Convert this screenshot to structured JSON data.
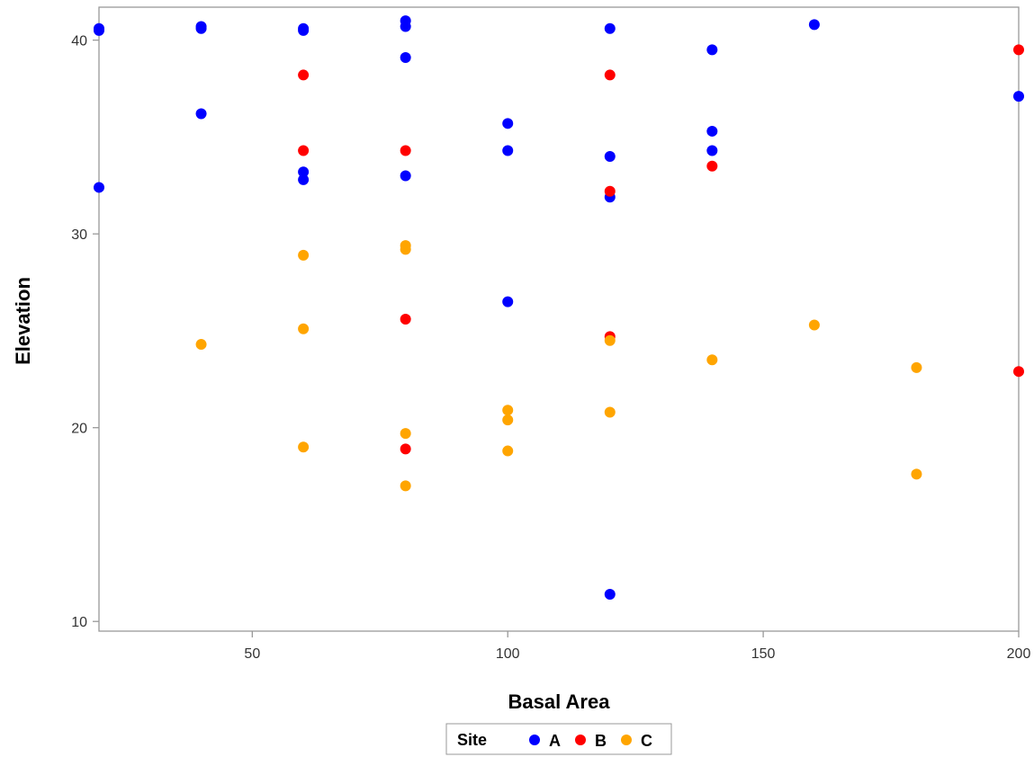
{
  "chart_data": {
    "type": "scatter",
    "title": "",
    "xlabel": "Basal Area",
    "ylabel": "Elevation",
    "xlim": [
      20,
      200
    ],
    "ylim": [
      9.5,
      41.7
    ],
    "x_ticks": [
      50,
      100,
      150,
      200
    ],
    "y_ticks": [
      10,
      20,
      30,
      40
    ],
    "grid": false,
    "legend": {
      "title": "Site",
      "placement": "bottom-center"
    },
    "series": [
      {
        "name": "A",
        "color": "#0000ff",
        "points": [
          [
            20,
            40.6
          ],
          [
            20,
            40.5
          ],
          [
            20,
            32.4
          ],
          [
            40,
            40.7
          ],
          [
            40,
            40.6
          ],
          [
            40,
            36.2
          ],
          [
            60,
            40.6
          ],
          [
            60,
            40.5
          ],
          [
            60,
            33.2
          ],
          [
            60,
            32.8
          ],
          [
            80,
            41.0
          ],
          [
            80,
            40.7
          ],
          [
            80,
            39.1
          ],
          [
            80,
            33.0
          ],
          [
            100,
            35.7
          ],
          [
            100,
            34.3
          ],
          [
            100,
            26.5
          ],
          [
            120,
            40.6
          ],
          [
            120,
            34.0
          ],
          [
            120,
            31.9
          ],
          [
            120,
            11.4
          ],
          [
            140,
            39.5
          ],
          [
            140,
            35.3
          ],
          [
            140,
            34.3
          ],
          [
            160,
            40.8
          ],
          [
            200,
            37.1
          ]
        ]
      },
      {
        "name": "B",
        "color": "#ff0000",
        "points": [
          [
            60,
            38.2
          ],
          [
            60,
            34.3
          ],
          [
            80,
            34.3
          ],
          [
            80,
            25.6
          ],
          [
            80,
            18.9
          ],
          [
            120,
            38.2
          ],
          [
            120,
            32.2
          ],
          [
            120,
            24.7
          ],
          [
            140,
            33.5
          ],
          [
            200,
            39.5
          ],
          [
            200,
            22.9
          ]
        ]
      },
      {
        "name": "C",
        "color": "#ffa500",
        "points": [
          [
            40,
            24.3
          ],
          [
            60,
            28.9
          ],
          [
            60,
            25.1
          ],
          [
            60,
            19.0
          ],
          [
            80,
            29.4
          ],
          [
            80,
            29.2
          ],
          [
            80,
            19.7
          ],
          [
            80,
            17.0
          ],
          [
            100,
            20.9
          ],
          [
            100,
            20.4
          ],
          [
            100,
            18.8
          ],
          [
            120,
            24.5
          ],
          [
            120,
            20.8
          ],
          [
            140,
            23.5
          ],
          [
            160,
            25.3
          ],
          [
            180,
            23.1
          ],
          [
            180,
            17.6
          ]
        ]
      }
    ]
  }
}
